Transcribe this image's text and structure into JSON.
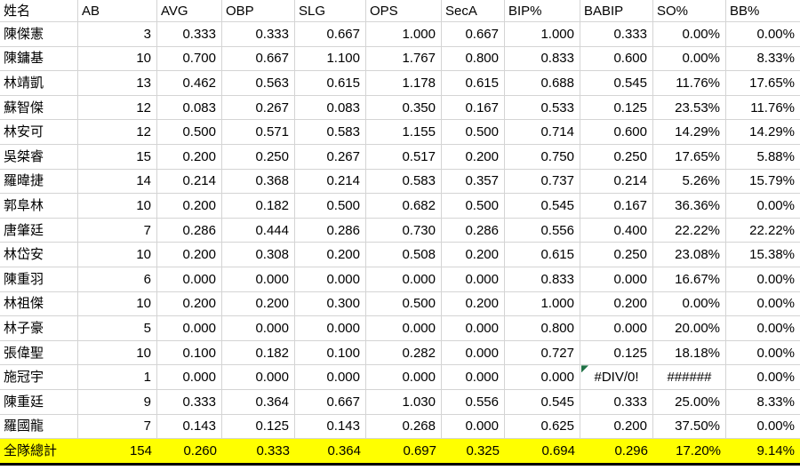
{
  "colors": {
    "highlight_yellow": "#FFFF00",
    "gridline": "#D4D4D4",
    "error_indicator_green": "#1E7145",
    "text": "#000000",
    "total_row_bottom_border": "#000000"
  },
  "table": {
    "columns": [
      "姓名",
      "AB",
      "AVG",
      "OBP",
      "SLG",
      "OPS",
      "SecA",
      "BIP%",
      "BABIP",
      "SO%",
      "BB%"
    ],
    "rows": [
      [
        "陳傑憲",
        "3",
        "0.333",
        "0.333",
        "0.667",
        "1.000",
        "0.667",
        "1.000",
        "0.333",
        "0.00%",
        "0.00%"
      ],
      [
        "陳鏞基",
        "10",
        "0.700",
        "0.667",
        "1.100",
        "1.767",
        "0.800",
        "0.833",
        "0.600",
        "0.00%",
        "8.33%"
      ],
      [
        "林靖凱",
        "13",
        "0.462",
        "0.563",
        "0.615",
        "1.178",
        "0.615",
        "0.688",
        "0.545",
        "11.76%",
        "17.65%"
      ],
      [
        "蘇智傑",
        "12",
        "0.083",
        "0.267",
        "0.083",
        "0.350",
        "0.167",
        "0.533",
        "0.125",
        "23.53%",
        "11.76%"
      ],
      [
        "林安可",
        "12",
        "0.500",
        "0.571",
        "0.583",
        "1.155",
        "0.500",
        "0.714",
        "0.600",
        "14.29%",
        "14.29%"
      ],
      [
        "吳桀睿",
        "15",
        "0.200",
        "0.250",
        "0.267",
        "0.517",
        "0.200",
        "0.750",
        "0.250",
        "17.65%",
        "5.88%"
      ],
      [
        "羅暐捷",
        "14",
        "0.214",
        "0.368",
        "0.214",
        "0.583",
        "0.357",
        "0.737",
        "0.214",
        "5.26%",
        "15.79%"
      ],
      [
        "郭阜林",
        "10",
        "0.200",
        "0.182",
        "0.500",
        "0.682",
        "0.500",
        "0.545",
        "0.167",
        "36.36%",
        "0.00%"
      ],
      [
        "唐肇廷",
        "7",
        "0.286",
        "0.444",
        "0.286",
        "0.730",
        "0.286",
        "0.556",
        "0.400",
        "22.22%",
        "22.22%"
      ],
      [
        "林岱安",
        "10",
        "0.200",
        "0.308",
        "0.200",
        "0.508",
        "0.200",
        "0.615",
        "0.250",
        "23.08%",
        "15.38%"
      ],
      [
        "陳重羽",
        "6",
        "0.000",
        "0.000",
        "0.000",
        "0.000",
        "0.000",
        "0.833",
        "0.000",
        "16.67%",
        "0.00%"
      ],
      [
        "林祖傑",
        "10",
        "0.200",
        "0.200",
        "0.300",
        "0.500",
        "0.200",
        "1.000",
        "0.200",
        "0.00%",
        "0.00%"
      ],
      [
        "林子豪",
        "5",
        "0.000",
        "0.000",
        "0.000",
        "0.000",
        "0.000",
        "0.800",
        "0.000",
        "20.00%",
        "0.00%"
      ],
      [
        "張偉聖",
        "10",
        "0.100",
        "0.182",
        "0.100",
        "0.282",
        "0.000",
        "0.727",
        "0.125",
        "18.18%",
        "0.00%"
      ],
      [
        "施冠宇",
        "1",
        "0.000",
        "0.000",
        "0.000",
        "0.000",
        "0.000",
        "0.000",
        "#DIV/0!",
        "######",
        "0.00%"
      ],
      [
        "陳重廷",
        "9",
        "0.333",
        "0.364",
        "0.667",
        "1.030",
        "0.556",
        "0.545",
        "0.333",
        "25.00%",
        "8.33%"
      ],
      [
        "羅國龍",
        "7",
        "0.143",
        "0.125",
        "0.143",
        "0.268",
        "0.000",
        "0.625",
        "0.200",
        "37.50%",
        "0.00%"
      ]
    ],
    "total_row": [
      "全隊總計",
      "154",
      "0.260",
      "0.333",
      "0.364",
      "0.697",
      "0.325",
      "0.694",
      "0.296",
      "17.20%",
      "9.14%"
    ],
    "error_cell": {
      "row_label": "施冠宇",
      "column": "BABIP",
      "value": "#DIV/0!",
      "indicator": "green-triangle"
    },
    "overflow_cell": {
      "row_label": "施冠宇",
      "column": "SO%",
      "value": "######"
    }
  }
}
